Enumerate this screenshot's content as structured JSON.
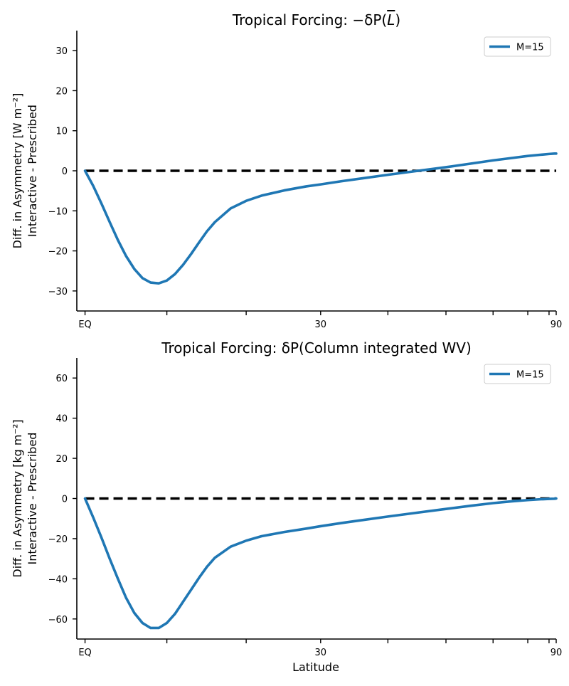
{
  "figure": {
    "xlabel": "Latitude"
  },
  "chart_data": [
    {
      "type": "line",
      "title_prefix": "Tropical Forcing: −δP(",
      "title_symbol": "L",
      "title_suffix": ")",
      "ylabel_line1": "Diff. in Asymmetry [W m⁻²]",
      "ylabel_line2": "Interactive - Prescribed",
      "xlabel": "",
      "x_scale": "sine of latitude",
      "xlim": [
        -1,
        90
      ],
      "ylim": [
        -35,
        35
      ],
      "yticks": [
        -30,
        -20,
        -10,
        0,
        10,
        20,
        30
      ],
      "xticks": [
        0,
        10,
        20,
        30,
        40,
        50,
        60,
        70,
        80,
        90
      ],
      "xtick_labels": [
        "EQ",
        "",
        "",
        "30",
        "",
        "",
        "",
        "",
        "",
        "90"
      ],
      "grid": false,
      "legend_position": "top-right",
      "reference_line": {
        "y": 0,
        "style": "dashed",
        "color": "#000000"
      },
      "series": [
        {
          "name": "M=15",
          "color": "#1f77b4",
          "x": [
            0,
            1,
            2,
            3,
            4,
            5,
            6,
            7,
            8,
            9,
            10,
            11,
            12,
            13,
            14,
            15,
            16,
            18,
            20,
            22,
            25,
            28,
            30,
            33,
            36,
            40,
            45,
            50,
            55,
            60,
            65,
            70,
            75,
            80,
            85,
            90
          ],
          "y": [
            0,
            -3.8,
            -8.2,
            -12.8,
            -17.3,
            -21.3,
            -24.5,
            -26.8,
            -27.9,
            -28.1,
            -27.4,
            -25.8,
            -23.5,
            -20.8,
            -17.9,
            -15.1,
            -12.8,
            -9.4,
            -7.5,
            -6.2,
            -4.9,
            -3.9,
            -3.4,
            -2.6,
            -1.9,
            -1.0,
            0.0,
            0.9,
            1.8,
            2.6,
            3.2,
            3.7,
            4.0,
            4.2,
            4.3,
            4.3
          ]
        }
      ]
    },
    {
      "type": "line",
      "title_prefix": "Tropical Forcing: δP(Column integrated WV)",
      "title_symbol": "",
      "title_suffix": "",
      "ylabel_line1": "Diff. in Asymmetry [kg m⁻²]",
      "ylabel_line2": "Interactive - Prescribed",
      "xlabel": "Latitude",
      "x_scale": "sine of latitude",
      "xlim": [
        -1,
        90
      ],
      "ylim": [
        -70,
        70
      ],
      "yticks": [
        -60,
        -40,
        -20,
        0,
        20,
        40,
        60
      ],
      "xticks": [
        0,
        10,
        20,
        30,
        40,
        50,
        60,
        70,
        80,
        90
      ],
      "xtick_labels": [
        "EQ",
        "",
        "",
        "30",
        "",
        "",
        "",
        "",
        "",
        "90"
      ],
      "grid": false,
      "legend_position": "top-right",
      "reference_line": {
        "y": 0,
        "style": "dashed",
        "color": "#000000"
      },
      "series": [
        {
          "name": "M=15",
          "color": "#1f77b4",
          "x": [
            0,
            1,
            2,
            3,
            4,
            5,
            6,
            7,
            8,
            9,
            10,
            11,
            12,
            13,
            14,
            15,
            16,
            18,
            20,
            22,
            25,
            28,
            30,
            33,
            36,
            40,
            45,
            50,
            55,
            60,
            65,
            70,
            75,
            80,
            85,
            90
          ],
          "y": [
            0,
            -9.5,
            -19.5,
            -30,
            -40,
            -49.5,
            -57,
            -62,
            -64.5,
            -64.5,
            -62,
            -57.5,
            -51.5,
            -45.5,
            -39.5,
            -34,
            -29.5,
            -24,
            -21,
            -18.8,
            -16.7,
            -15,
            -13.8,
            -12.2,
            -10.8,
            -9.0,
            -7.0,
            -5.2,
            -3.6,
            -2.3,
            -1.4,
            -0.8,
            -0.4,
            -0.2,
            -0.1,
            0
          ]
        }
      ]
    }
  ]
}
